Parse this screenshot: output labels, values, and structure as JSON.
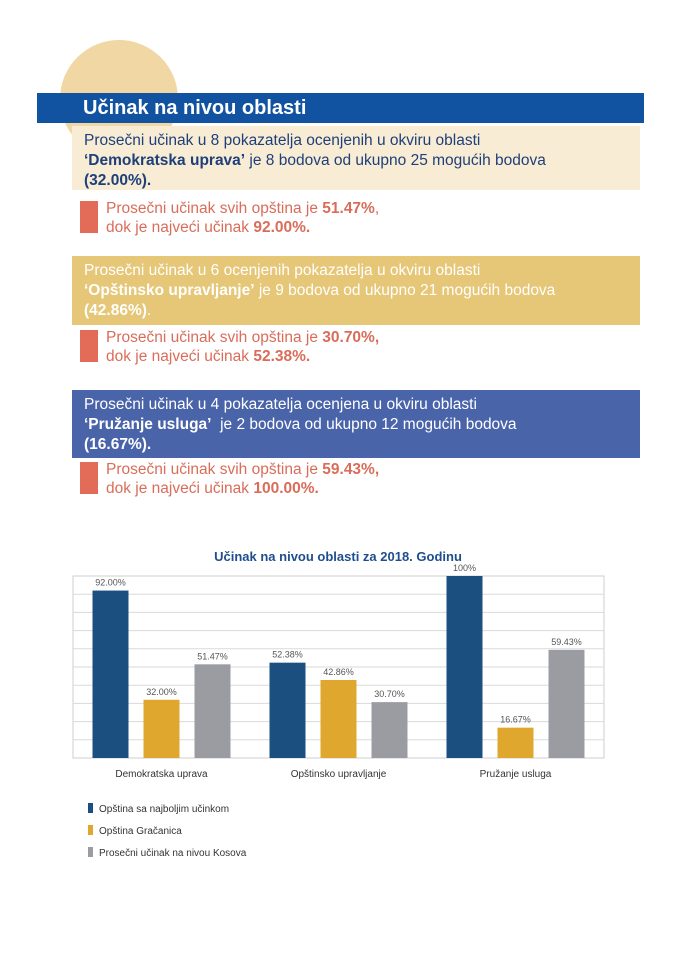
{
  "header": {
    "title": "Učinak na nivou oblasti"
  },
  "sections": [
    {
      "line1": "Prosečni učinak u 8 pokazatelja ocenjenih u okviru oblasti",
      "area_name": "‘Demokratska uprava’",
      "line2_rest": " je 8 bodova od ukupno 25 mogućih bodova",
      "percent": "(32.00%).",
      "avg_prefix": "Prosečni učinak svih opština je ",
      "avg_value": "51.47%",
      "avg_suffix": ",",
      "max_prefix": "dok je najveći učinak ",
      "max_value": "92.00%."
    },
    {
      "line1": "Prosečni učinak u 6 ocenjenih pokazatelja u okviru oblasti",
      "area_name": "‘Opštinsko upravljanje’",
      "line2_rest": " je 9 bodova od ukupno 21 mogućih bodova",
      "percent": "(42.86%)",
      "percent_tail": ".",
      "avg_prefix": "Prosečni učinak svih opština je ",
      "avg_value": "30.70%,",
      "max_prefix": "dok je najveći učinak ",
      "max_value": "52.38%."
    },
    {
      "line1": "Prosečni učinak u 4 pokazatelja ocenjena u okviru oblasti",
      "area_name": "‘Pružanje usluga’",
      "line2_rest": "  je 2 bodova od ukupno 12 mogućih bodova",
      "percent": "(16.67%).",
      "avg_prefix": "Prosečni učinak svih opština je ",
      "avg_value": "59.43%,",
      "max_prefix": "dok je najveći učinak ",
      "max_value": "100.00%."
    }
  ],
  "colors": {
    "title_bar": "#1153a0",
    "series": [
      "#1b4f80",
      "#e0a72e",
      "#9a9ca2"
    ]
  },
  "chart_data": {
    "type": "bar",
    "title": "Učinak na nivou oblasti za 2018. Godinu",
    "categories": [
      "Demokratska uprava",
      "Opštinsko upravljanje",
      "Pružanje usluga"
    ],
    "series": [
      {
        "name": "Opština sa najboljim učinkom",
        "values": [
          92.0,
          52.38,
          100
        ],
        "labels": [
          "92.00%",
          "52.38%",
          "100%"
        ]
      },
      {
        "name": "Opština Gračanica",
        "values": [
          32.0,
          42.86,
          16.67
        ],
        "labels": [
          "32.00%",
          "42.86%",
          "16.67%"
        ]
      },
      {
        "name": "Prosečni učinak na nivou Kosova",
        "values": [
          51.47,
          30.7,
          59.43
        ],
        "labels": [
          "51.47%",
          "30.70%",
          "59.43%"
        ]
      }
    ],
    "ylim": [
      0,
      100
    ],
    "grid": true,
    "legend_position": "bottom-left"
  }
}
